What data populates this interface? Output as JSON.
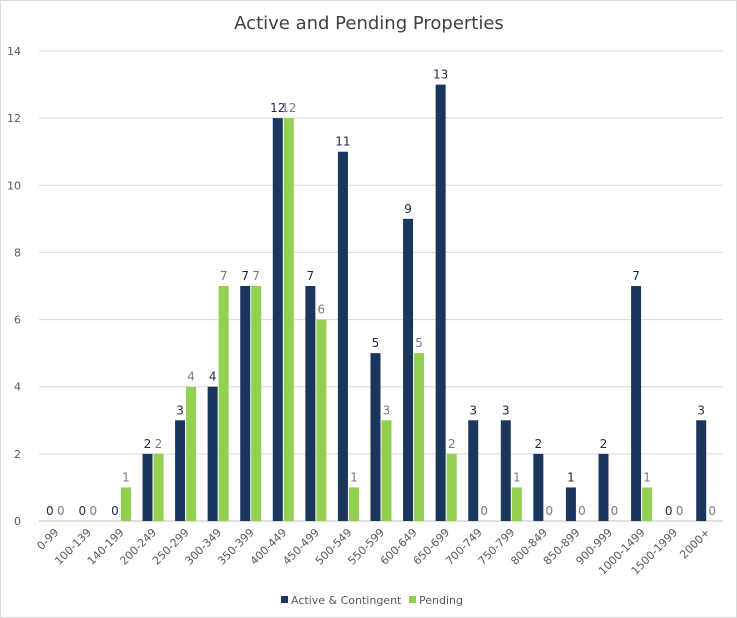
{
  "chart_data": {
    "type": "bar",
    "title": "Active and Pending Properties",
    "xlabel": "",
    "ylabel": "",
    "ylim": [
      0,
      14
    ],
    "yticks": [
      0,
      2,
      4,
      6,
      8,
      10,
      12,
      14
    ],
    "grid": true,
    "legend_position": "bottom",
    "categories": [
      "0-99",
      "100-139",
      "140-199",
      "200-249",
      "250-299",
      "300-349",
      "350-399",
      "400-449",
      "450-499",
      "500-549",
      "550-599",
      "600-649",
      "650-699",
      "700-749",
      "750-799",
      "800-849",
      "850-899",
      "900-999",
      "1000-1499",
      "1500-1999",
      "2000+"
    ],
    "series": [
      {
        "name": "Active & Contingent",
        "color": "#1b365d",
        "label_color": "#1b2a4a",
        "values": [
          0,
          0,
          0,
          2,
          3,
          4,
          7,
          12,
          7,
          11,
          5,
          9,
          13,
          3,
          3,
          2,
          1,
          2,
          7,
          0,
          3
        ]
      },
      {
        "name": "Pending",
        "color": "#92d050",
        "label_color": "#7f7490",
        "values": [
          0,
          0,
          1,
          2,
          4,
          7,
          7,
          12,
          6,
          1,
          3,
          5,
          2,
          0,
          1,
          0,
          0,
          0,
          1,
          0,
          0
        ]
      }
    ]
  }
}
